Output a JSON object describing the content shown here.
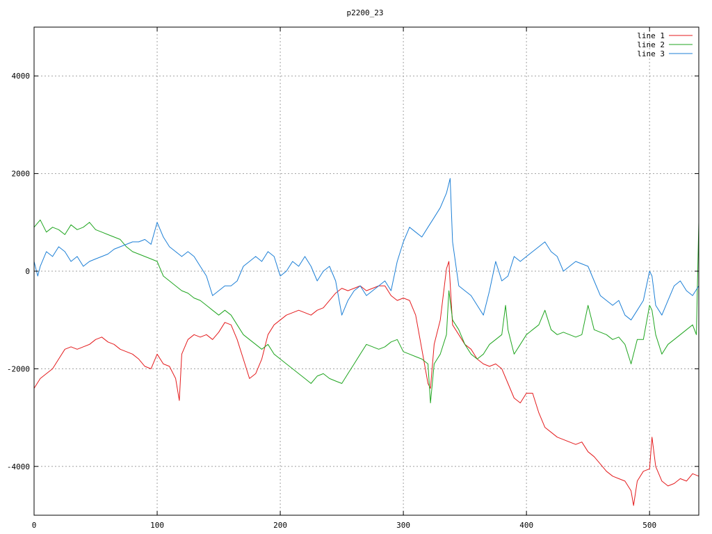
{
  "chart_data": {
    "type": "line",
    "title": "p2200_23",
    "xlabel": "",
    "ylabel": "",
    "xlim": [
      0,
      540
    ],
    "ylim": [
      -5000,
      5000
    ],
    "x_ticks": [
      0,
      100,
      200,
      300,
      400,
      500
    ],
    "y_ticks": [
      -4000,
      -2000,
      0,
      2000,
      4000
    ],
    "grid": true,
    "legend_position": "top-right",
    "series": [
      {
        "name": "line 1",
        "color": "#e41a1c",
        "x": [
          0,
          5,
          10,
          15,
          20,
          25,
          30,
          35,
          40,
          45,
          50,
          55,
          60,
          65,
          70,
          75,
          80,
          85,
          90,
          95,
          100,
          105,
          110,
          115,
          118,
          120,
          125,
          130,
          135,
          140,
          145,
          150,
          155,
          160,
          165,
          170,
          175,
          180,
          185,
          190,
          195,
          200,
          205,
          210,
          215,
          220,
          225,
          230,
          235,
          240,
          245,
          250,
          255,
          260,
          265,
          270,
          275,
          280,
          285,
          290,
          295,
          300,
          305,
          310,
          315,
          320,
          322,
          325,
          330,
          335,
          337,
          340,
          345,
          350,
          355,
          360,
          365,
          370,
          375,
          380,
          385,
          390,
          395,
          400,
          405,
          410,
          415,
          420,
          425,
          430,
          435,
          440,
          445,
          450,
          455,
          460,
          465,
          470,
          475,
          480,
          485,
          487,
          490,
          495,
          500,
          502,
          505,
          510,
          515,
          520,
          525,
          530,
          535,
          540
        ],
        "values": [
          -2400,
          -2200,
          -2100,
          -2000,
          -1800,
          -1600,
          -1550,
          -1600,
          -1550,
          -1500,
          -1400,
          -1350,
          -1450,
          -1500,
          -1600,
          -1650,
          -1700,
          -1800,
          -1950,
          -2000,
          -1700,
          -1900,
          -1950,
          -2200,
          -2650,
          -1700,
          -1400,
          -1300,
          -1350,
          -1300,
          -1400,
          -1250,
          -1050,
          -1100,
          -1400,
          -1800,
          -2200,
          -2100,
          -1800,
          -1300,
          -1100,
          -1000,
          -900,
          -850,
          -800,
          -850,
          -900,
          -800,
          -750,
          -600,
          -450,
          -350,
          -400,
          -350,
          -300,
          -400,
          -350,
          -300,
          -300,
          -500,
          -600,
          -550,
          -600,
          -900,
          -1600,
          -2300,
          -2400,
          -1500,
          -1000,
          50,
          200,
          -1100,
          -1300,
          -1500,
          -1600,
          -1800,
          -1900,
          -1950,
          -1900,
          -2000,
          -2300,
          -2600,
          -2700,
          -2500,
          -2500,
          -2900,
          -3200,
          -3300,
          -3400,
          -3450,
          -3500,
          -3550,
          -3500,
          -3700,
          -3800,
          -3950,
          -4100,
          -4200,
          -4250,
          -4300,
          -4500,
          -4800,
          -4300,
          -4100,
          -4050,
          -3400,
          -4000,
          -4300,
          -4400,
          -4350,
          -4250,
          -4300,
          -4150,
          -4200
        ]
      },
      {
        "name": "line 2",
        "color": "#1fa51f",
        "x": [
          0,
          5,
          10,
          15,
          20,
          25,
          30,
          35,
          40,
          45,
          50,
          55,
          60,
          65,
          70,
          75,
          80,
          85,
          90,
          95,
          100,
          105,
          110,
          115,
          120,
          125,
          130,
          135,
          140,
          145,
          150,
          155,
          160,
          165,
          170,
          175,
          180,
          185,
          190,
          195,
          200,
          205,
          210,
          215,
          220,
          225,
          230,
          235,
          240,
          245,
          250,
          255,
          260,
          265,
          270,
          275,
          280,
          285,
          290,
          295,
          300,
          305,
          310,
          315,
          320,
          322,
          325,
          330,
          335,
          337,
          340,
          345,
          350,
          355,
          360,
          365,
          370,
          375,
          380,
          383,
          385,
          390,
          395,
          400,
          405,
          410,
          415,
          420,
          425,
          430,
          435,
          440,
          445,
          450,
          455,
          460,
          465,
          470,
          475,
          480,
          485,
          490,
          495,
          500,
          502,
          505,
          510,
          515,
          520,
          525,
          530,
          535,
          538,
          540
        ],
        "values": [
          900,
          1050,
          800,
          900,
          850,
          750,
          950,
          850,
          900,
          1000,
          850,
          800,
          750,
          700,
          650,
          500,
          400,
          350,
          300,
          250,
          200,
          -100,
          -200,
          -300,
          -400,
          -450,
          -550,
          -600,
          -700,
          -800,
          -900,
          -800,
          -900,
          -1100,
          -1300,
          -1400,
          -1500,
          -1600,
          -1500,
          -1700,
          -1800,
          -1900,
          -2000,
          -2100,
          -2200,
          -2300,
          -2150,
          -2100,
          -2200,
          -2250,
          -2300,
          -2100,
          -1900,
          -1700,
          -1500,
          -1550,
          -1600,
          -1550,
          -1450,
          -1400,
          -1650,
          -1700,
          -1750,
          -1800,
          -1900,
          -2700,
          -1900,
          -1700,
          -1300,
          -400,
          -1000,
          -1200,
          -1500,
          -1700,
          -1800,
          -1700,
          -1500,
          -1400,
          -1300,
          -700,
          -1200,
          -1700,
          -1500,
          -1300,
          -1200,
          -1100,
          -800,
          -1200,
          -1300,
          -1250,
          -1300,
          -1350,
          -1300,
          -700,
          -1200,
          -1250,
          -1300,
          -1400,
          -1350,
          -1500,
          -1900,
          -1400,
          -1400,
          -700,
          -800,
          -1300,
          -1700,
          -1500,
          -1400,
          -1300,
          -1200,
          -1100,
          -1300,
          1000
        ]
      },
      {
        "name": "line 3",
        "color": "#1c7fd6",
        "x": [
          0,
          3,
          5,
          10,
          15,
          20,
          25,
          30,
          35,
          40,
          45,
          50,
          55,
          60,
          65,
          70,
          75,
          80,
          85,
          90,
          95,
          100,
          105,
          110,
          115,
          120,
          125,
          130,
          135,
          140,
          145,
          150,
          155,
          160,
          165,
          170,
          175,
          180,
          185,
          190,
          195,
          200,
          205,
          210,
          215,
          220,
          225,
          230,
          235,
          240,
          245,
          250,
          255,
          260,
          265,
          270,
          275,
          280,
          285,
          290,
          295,
          300,
          305,
          310,
          315,
          320,
          325,
          330,
          335,
          338,
          340,
          345,
          350,
          355,
          360,
          365,
          370,
          375,
          380,
          385,
          390,
          395,
          400,
          405,
          410,
          415,
          420,
          425,
          430,
          435,
          440,
          445,
          450,
          455,
          460,
          465,
          470,
          475,
          480,
          485,
          490,
          495,
          500,
          502,
          505,
          510,
          515,
          520,
          525,
          530,
          535,
          540
        ],
        "values": [
          200,
          -100,
          100,
          400,
          300,
          500,
          400,
          200,
          300,
          100,
          200,
          250,
          300,
          350,
          450,
          500,
          550,
          600,
          600,
          650,
          550,
          1000,
          700,
          500,
          400,
          300,
          400,
          300,
          100,
          -100,
          -500,
          -400,
          -300,
          -300,
          -200,
          100,
          200,
          300,
          200,
          400,
          300,
          -100,
          0,
          200,
          100,
          300,
          100,
          -200,
          0,
          100,
          -200,
          -900,
          -600,
          -400,
          -300,
          -500,
          -400,
          -300,
          -200,
          -400,
          200,
          600,
          900,
          800,
          700,
          900,
          1100,
          1300,
          1600,
          1900,
          600,
          -300,
          -400,
          -500,
          -700,
          -900,
          -400,
          200,
          -200,
          -100,
          300,
          200,
          300,
          400,
          500,
          600,
          400,
          300,
          0,
          100,
          200,
          150,
          100,
          -200,
          -500,
          -600,
          -700,
          -600,
          -900,
          -1000,
          -800,
          -600,
          0,
          -100,
          -700,
          -900,
          -600,
          -300,
          -200,
          -400,
          -500,
          -300
        ]
      }
    ]
  }
}
